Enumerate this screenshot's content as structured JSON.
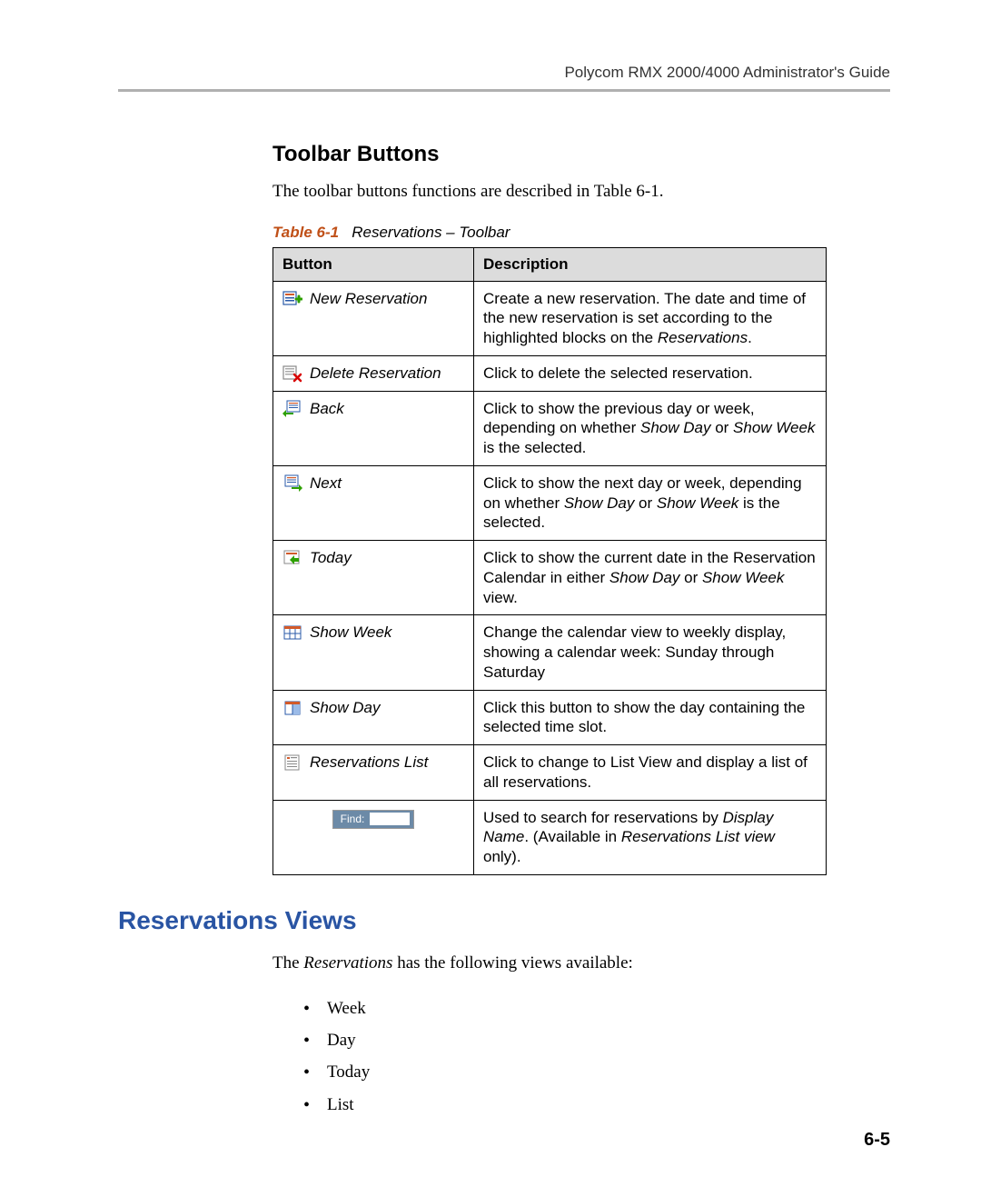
{
  "header": {
    "running_title": "Polycom RMX 2000/4000 Administrator's Guide"
  },
  "section": {
    "title": "Toolbar Buttons",
    "intro": "The toolbar buttons functions are described in Table 6-1."
  },
  "table": {
    "caption_label": "Table 6-1",
    "caption_text": "Reservations – Toolbar",
    "columns": [
      "Button",
      "Description"
    ],
    "header_bg": "#dcdcdc",
    "border_color": "#000000",
    "rows": [
      {
        "icon": "new-reservation-icon",
        "label": "New Reservation",
        "description_html": "Create a new reservation. The date and time of the new reservation is set according to the highlighted blocks on the <span class=\"italic\">Reservations</span>."
      },
      {
        "icon": "delete-reservation-icon",
        "label": "Delete Reservation",
        "description_html": "Click to delete the selected reservation."
      },
      {
        "icon": "back-icon",
        "label": "Back",
        "description_html": "Click to show the previous day or week, depending on whether <span class=\"italic\">Show Day</span> or <span class=\"italic\">Show Week</span> is the selected."
      },
      {
        "icon": "next-icon",
        "label": "Next",
        "description_html": "Click to show the next day or week, depending on whether <span class=\"italic\">Show Day</span> or <span class=\"italic\">Show Week</span> is the selected."
      },
      {
        "icon": "today-icon",
        "label": "Today",
        "description_html": "Click to show the current date in the Reservation Calendar in either <span class=\"italic\">Show Day</span> or <span class=\"italic\">Show Week</span> view."
      },
      {
        "icon": "show-week-icon",
        "label": "Show Week",
        "description_html": "Change the calendar view to weekly display, showing a calendar week: Sunday through Saturday"
      },
      {
        "icon": "show-day-icon",
        "label": "Show Day",
        "description_html": "Click this button to show the day containing the selected time slot."
      },
      {
        "icon": "reservations-list-icon",
        "label": "Reservations List",
        "description_html": "Click to change to List View and display a list of all reservations."
      },
      {
        "icon": "find-icon",
        "label": "",
        "is_find": true,
        "find_label": "Find:",
        "description_html": "Used to search for reservations by <span class=\"italic\">Display Name</span>. (Available in <span class=\"italic\">Reservations List view</span> only)."
      }
    ]
  },
  "views": {
    "heading": "Reservations Views",
    "intro_html": "The <span class=\"italic\">Reservations</span> has the following views available:",
    "items": [
      "Week",
      "Day",
      "Today",
      "List"
    ]
  },
  "page_number": "6-5",
  "colors": {
    "heading_blue": "#2954a3",
    "caption_orange": "#c05018",
    "find_bg": "#6c8aa7"
  }
}
